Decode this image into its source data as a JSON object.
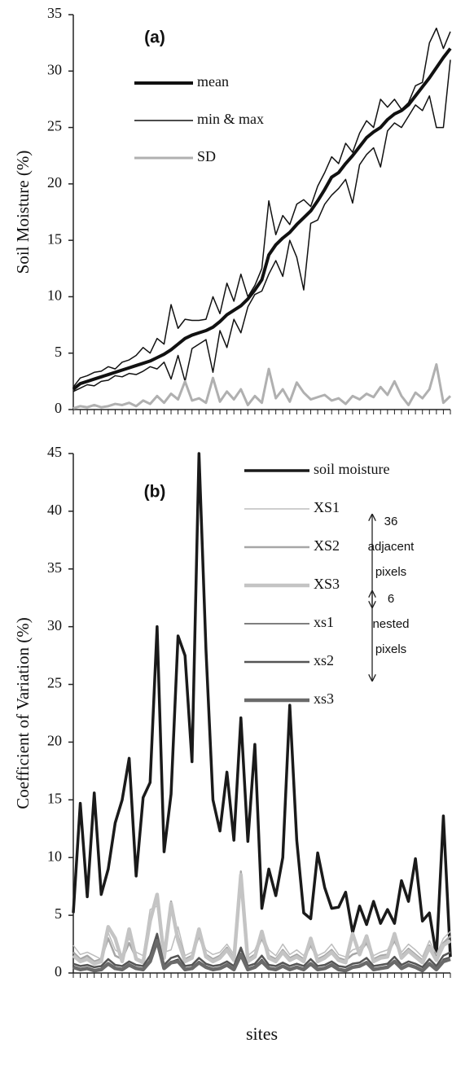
{
  "chart_data": [
    {
      "type": "line",
      "title": "(a)",
      "ylabel": "Soil Moisture (%)",
      "x": [
        1,
        2,
        3,
        4,
        5,
        6,
        7,
        8,
        9,
        10,
        11,
        12,
        13,
        14,
        15,
        16,
        17,
        18,
        19,
        20,
        21,
        22,
        23,
        24,
        25,
        26,
        27,
        28,
        29,
        30,
        31,
        32,
        33,
        34,
        35,
        36,
        37,
        38,
        39,
        40,
        41,
        42,
        43,
        44,
        45,
        46,
        47,
        48,
        49,
        50,
        51,
        52,
        53,
        54,
        55
      ],
      "xlim": [
        1,
        55
      ],
      "xticks": [
        1,
        2,
        3,
        4,
        5,
        6,
        7,
        8,
        9,
        10,
        11,
        12,
        13,
        14,
        15,
        16,
        17,
        18,
        19,
        20,
        21,
        22,
        23,
        24,
        25,
        26,
        27,
        28,
        29,
        30,
        31,
        32,
        33,
        34,
        35,
        36,
        37,
        38,
        39,
        40,
        41,
        42,
        43,
        44,
        45,
        46,
        47,
        48,
        49,
        50,
        51,
        52,
        53,
        54,
        55
      ],
      "ylim": [
        0,
        35
      ],
      "yticks": [
        0,
        5,
        10,
        15,
        20,
        25,
        30,
        35
      ],
      "series": [
        {
          "name": "mean",
          "color": "#111111",
          "width": 4,
          "values": [
            1.8,
            2.3,
            2.5,
            2.7,
            2.9,
            3.1,
            3.3,
            3.5,
            3.7,
            3.9,
            4.1,
            4.3,
            4.6,
            4.9,
            5.3,
            5.8,
            6.3,
            6.6,
            6.8,
            7.0,
            7.3,
            7.8,
            8.4,
            8.8,
            9.2,
            9.8,
            10.6,
            11.5,
            13.7,
            14.6,
            15.2,
            15.7,
            16.4,
            17.0,
            17.6,
            18.5,
            19.5,
            20.6,
            21.0,
            21.8,
            22.5,
            23.3,
            24.1,
            24.6,
            25.0,
            25.7,
            26.2,
            26.5,
            27.0,
            27.8,
            28.6,
            29.4,
            30.3,
            31.2,
            32.0
          ]
        },
        {
          "name": "min & max",
          "color": "#111111",
          "width": 1.5,
          "values": [
            1.6,
            1.9,
            2.2,
            2.1,
            2.5,
            2.6,
            3.0,
            2.9,
            3.2,
            3.1,
            3.4,
            3.8,
            3.6,
            4.2,
            2.7,
            4.8,
            2.5,
            5.4,
            5.8,
            6.2,
            3.3,
            7.0,
            5.5,
            8.0,
            6.8,
            9.1,
            10.2,
            10.5,
            12.0,
            13.2,
            11.8,
            15.0,
            13.5,
            10.6,
            16.5,
            16.8,
            18.2,
            19.0,
            19.6,
            20.4,
            18.3,
            21.7,
            22.6,
            23.2,
            21.5,
            24.7,
            25.4,
            25.0,
            26.0,
            27.0,
            26.5,
            27.8,
            25.0,
            25.0,
            31.0
          ]
        },
        {
          "color": "#111111",
          "width": 1.5,
          "values": [
            2.0,
            2.8,
            3.0,
            3.3,
            3.4,
            3.8,
            3.6,
            4.2,
            4.4,
            4.8,
            5.5,
            5.0,
            6.3,
            5.8,
            9.3,
            7.2,
            8.0,
            7.9,
            7.9,
            8.0,
            10.0,
            8.5,
            11.2,
            9.6,
            12.0,
            10.0,
            11.0,
            12.5,
            18.5,
            15.5,
            17.2,
            16.4,
            18.2,
            18.6,
            18.0,
            19.8,
            21.0,
            22.4,
            21.8,
            23.6,
            22.8,
            24.5,
            25.6,
            25.0,
            27.5,
            26.8,
            27.5,
            26.6,
            27.2,
            28.7,
            29.0,
            32.5,
            33.8,
            32.0,
            33.5
          ]
        },
        {
          "name": "SD",
          "color": "#b0b0b0",
          "width": 3,
          "values": [
            0.1,
            0.3,
            0.2,
            0.4,
            0.2,
            0.3,
            0.5,
            0.4,
            0.6,
            0.3,
            0.8,
            0.5,
            1.2,
            0.6,
            1.4,
            0.9,
            2.5,
            0.8,
            1.0,
            0.6,
            2.8,
            0.7,
            1.6,
            0.9,
            1.8,
            0.4,
            1.2,
            0.6,
            3.6,
            1.0,
            1.8,
            0.7,
            2.4,
            1.5,
            0.9,
            1.1,
            1.3,
            0.8,
            1.0,
            0.5,
            1.2,
            0.9,
            1.4,
            1.1,
            2.0,
            1.3,
            2.5,
            1.2,
            0.4,
            1.5,
            1.0,
            1.8,
            4.0,
            0.6,
            1.2
          ]
        }
      ]
    },
    {
      "type": "line",
      "title": "(b)",
      "ylabel": "Coefficient of Variation (%)",
      "xlabel": "sites",
      "x": [
        1,
        2,
        3,
        4,
        5,
        6,
        7,
        8,
        9,
        10,
        11,
        12,
        13,
        14,
        15,
        16,
        17,
        18,
        19,
        20,
        21,
        22,
        23,
        24,
        25,
        26,
        27,
        28,
        29,
        30,
        31,
        32,
        33,
        34,
        35,
        36,
        37,
        38,
        39,
        40,
        41,
        42,
        43,
        44,
        45,
        46,
        47,
        48,
        49,
        50,
        51,
        52,
        53,
        54,
        55
      ],
      "xlim": [
        1,
        55
      ],
      "xticks": [
        1,
        2,
        3,
        4,
        5,
        6,
        7,
        8,
        9,
        10,
        11,
        12,
        13,
        14,
        15,
        16,
        17,
        18,
        19,
        20,
        21,
        22,
        23,
        24,
        25,
        26,
        27,
        28,
        29,
        30,
        31,
        32,
        33,
        34,
        35,
        36,
        37,
        38,
        39,
        40,
        41,
        42,
        43,
        44,
        45,
        46,
        47,
        48,
        49,
        50,
        51,
        52,
        53,
        54,
        55
      ],
      "ylim": [
        0,
        45
      ],
      "yticks": [
        0,
        5,
        10,
        15,
        20,
        25,
        30,
        35,
        40,
        45
      ],
      "annotations": [
        [
          "36",
          "adjacent",
          "pixels"
        ],
        [
          "6",
          "nested",
          "pixels"
        ]
      ],
      "series": [
        {
          "name": "soil moisture",
          "color": "#1a1a1a",
          "width": 3.5,
          "values": [
            5.2,
            14.7,
            6.6,
            15.6,
            6.8,
            9.0,
            13.0,
            15.0,
            18.6,
            8.4,
            15.2,
            16.5,
            30.0,
            10.5,
            15.5,
            29.2,
            27.5,
            18.3,
            45,
            28.0,
            15.0,
            12.3,
            17.4,
            11.5,
            22.1,
            11.4,
            19.8,
            5.6,
            9.0,
            6.7,
            10.0,
            23.2,
            11.5,
            5.2,
            4.7,
            10.4,
            7.4,
            5.6,
            5.7,
            7.0,
            3.5,
            5.8,
            4.2,
            6.2,
            4.3,
            5.5,
            4.3,
            8.0,
            6.2,
            9.9,
            4.5,
            5.2,
            1.5,
            13.6,
            1.4
          ]
        },
        {
          "name": "XS1",
          "color": "#bdbdbd",
          "width": 1.5,
          "values": [
            2.4,
            1.6,
            1.8,
            1.5,
            1.2,
            3.5,
            2.0,
            1.6,
            3.0,
            1.8,
            1.5,
            5.5,
            5.8,
            1.8,
            2.0,
            4.0,
            1.5,
            1.8,
            3.5,
            2.0,
            1.6,
            1.8,
            2.5,
            1.6,
            8.5,
            1.5,
            2.0,
            3.5,
            2.0,
            1.5,
            2.5,
            1.6,
            2.0,
            1.5,
            2.8,
            1.5,
            1.8,
            2.5,
            1.6,
            1.4,
            2.0,
            2.2,
            3.0,
            1.5,
            1.8,
            2.0,
            3.2,
            1.8,
            2.5,
            2.0,
            1.4,
            2.8,
            1.6,
            3.0,
            3.6
          ]
        },
        {
          "name": "XS2",
          "color": "#a6a6a6",
          "width": 2.5,
          "values": [
            1.8,
            1.2,
            1.5,
            1.0,
            1.2,
            3.0,
            1.5,
            1.2,
            2.6,
            1.3,
            1.0,
            4.8,
            6.5,
            1.5,
            6.2,
            3.2,
            1.2,
            1.5,
            3.2,
            1.6,
            1.2,
            1.5,
            2.2,
            1.3,
            8.8,
            1.2,
            1.6,
            3.0,
            1.5,
            1.2,
            2.0,
            1.3,
            1.6,
            1.2,
            2.4,
            1.2,
            1.5,
            2.0,
            1.3,
            1.1,
            1.6,
            1.8,
            2.6,
            1.2,
            1.5,
            1.6,
            2.8,
            1.5,
            2.1,
            1.6,
            1.1,
            2.4,
            1.3,
            2.6,
            3.2
          ]
        },
        {
          "name": "XS3",
          "color": "#c4c4c4",
          "width": 4.5,
          "values": [
            1.5,
            1.0,
            1.2,
            0.8,
            1.0,
            4.0,
            3.0,
            1.0,
            3.8,
            1.2,
            0.9,
            4.5,
            6.8,
            1.3,
            6.0,
            2.8,
            1.0,
            1.3,
            3.8,
            1.4,
            1.0,
            1.3,
            2.0,
            1.1,
            8.5,
            1.0,
            1.4,
            3.6,
            1.3,
            1.0,
            1.8,
            1.1,
            1.4,
            1.0,
            3.0,
            1.0,
            1.3,
            1.8,
            1.1,
            0.9,
            3.4,
            1.6,
            3.2,
            1.0,
            1.3,
            1.4,
            3.4,
            1.3,
            1.9,
            1.4,
            0.9,
            2.2,
            1.1,
            2.4,
            2.8
          ]
        },
        {
          "name": "xs1",
          "color": "#333333",
          "width": 1.2,
          "values": [
            0.6,
            0.4,
            0.5,
            0.3,
            0.4,
            0.9,
            0.5,
            0.4,
            0.8,
            0.5,
            0.4,
            1.2,
            3.0,
            0.5,
            1.0,
            1.2,
            0.4,
            0.5,
            1.0,
            0.6,
            0.4,
            0.5,
            0.8,
            0.4,
            2.0,
            0.4,
            0.6,
            1.2,
            0.5,
            0.4,
            0.7,
            0.4,
            0.6,
            0.4,
            0.9,
            0.4,
            0.5,
            0.8,
            0.4,
            0.3,
            0.6,
            0.7,
            1.0,
            0.4,
            0.5,
            0.6,
            1.1,
            0.5,
            0.8,
            0.6,
            0.3,
            0.9,
            0.4,
            1.2,
            1.4
          ]
        },
        {
          "name": "xs2",
          "color": "#555555",
          "width": 2.5,
          "values": [
            0.8,
            0.6,
            0.7,
            0.5,
            0.6,
            1.2,
            0.7,
            0.6,
            1.0,
            0.7,
            0.6,
            1.5,
            3.4,
            0.7,
            1.3,
            1.5,
            0.6,
            0.7,
            1.3,
            0.8,
            0.6,
            0.7,
            1.0,
            0.6,
            2.2,
            0.6,
            0.8,
            1.5,
            0.7,
            0.6,
            0.9,
            0.6,
            0.8,
            0.6,
            1.2,
            0.6,
            0.7,
            1.0,
            0.6,
            0.5,
            0.8,
            0.9,
            1.3,
            0.6,
            0.7,
            0.8,
            1.4,
            0.7,
            1.0,
            0.8,
            0.5,
            1.2,
            0.6,
            1.5,
            1.8
          ]
        },
        {
          "name": "xs3",
          "color": "#6a6a6a",
          "width": 4.5,
          "values": [
            0.5,
            0.3,
            0.4,
            0.2,
            0.3,
            0.8,
            0.4,
            0.3,
            0.7,
            0.4,
            0.3,
            1.0,
            2.8,
            0.4,
            0.9,
            1.0,
            0.3,
            0.4,
            0.9,
            0.5,
            0.3,
            0.4,
            0.7,
            0.3,
            1.6,
            0.3,
            0.5,
            1.0,
            0.4,
            0.3,
            0.6,
            0.3,
            0.5,
            0.3,
            0.8,
            0.3,
            0.4,
            0.7,
            0.3,
            0.2,
            0.5,
            0.6,
            0.9,
            0.3,
            0.4,
            0.5,
            1.0,
            0.4,
            0.7,
            0.5,
            0.2,
            0.8,
            0.3,
            1.0,
            1.2
          ]
        }
      ]
    }
  ]
}
